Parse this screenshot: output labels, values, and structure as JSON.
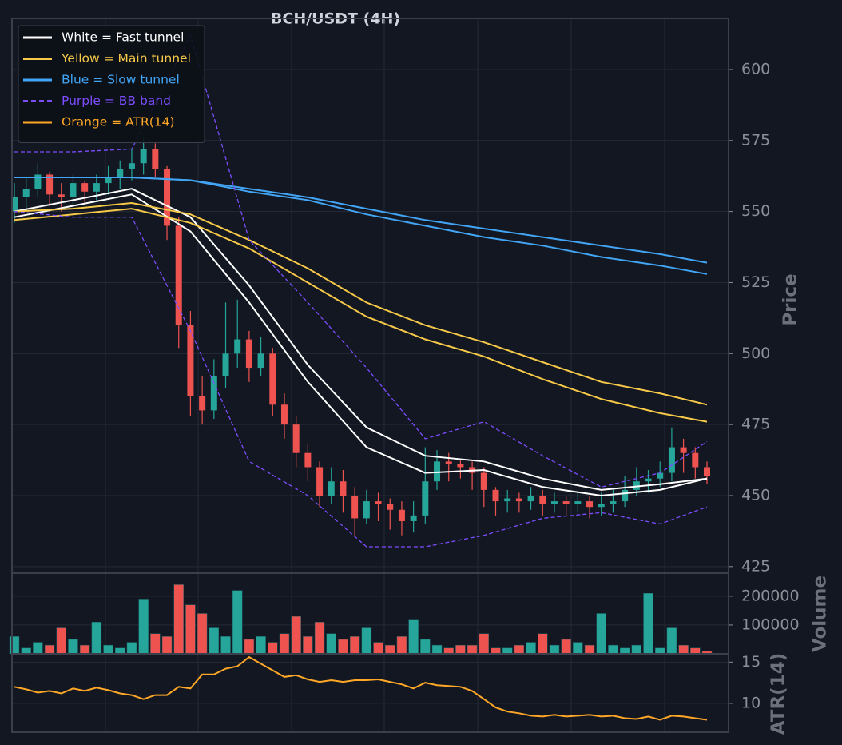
{
  "chart_data": [
    {
      "type": "candlestick",
      "title": "BCH/USDT (4H)",
      "ylabel": "Price",
      "legend": "upper left",
      "grid": true,
      "up_color": "#26a69a",
      "down_color": "#ef5350",
      "ylim": [
        422.7,
        618
      ],
      "yticks": [
        425,
        450,
        475,
        500,
        525,
        550,
        575,
        600
      ],
      "open": [
        550,
        555,
        558,
        563,
        556,
        555,
        560,
        557,
        560,
        562,
        565,
        567,
        572,
        565,
        545,
        510,
        485,
        480,
        492,
        500,
        505,
        495,
        500,
        482,
        475,
        465,
        460,
        450,
        455,
        450,
        442,
        448,
        447,
        445,
        441,
        443,
        455,
        462,
        461,
        460,
        458,
        452,
        448,
        449,
        448,
        450,
        447,
        448,
        447,
        448,
        446,
        447,
        448,
        452,
        455,
        456,
        458,
        467,
        465,
        460
      ],
      "high": [
        560,
        562,
        567,
        564,
        560,
        563,
        561,
        563,
        566,
        568,
        572,
        576,
        574,
        566,
        548,
        515,
        492,
        498,
        518,
        519,
        508,
        506,
        502,
        486,
        478,
        468,
        462,
        460,
        459,
        453,
        452,
        451,
        449,
        448,
        448,
        467,
        466,
        465,
        463,
        462,
        460,
        453,
        452,
        451,
        453,
        452,
        451,
        450,
        451,
        450,
        451,
        452,
        457,
        460,
        459,
        462,
        474,
        470,
        467,
        462
      ],
      "low": [
        546,
        551,
        555,
        552,
        550,
        552,
        553,
        554,
        556,
        558,
        561,
        563,
        562,
        540,
        502,
        478,
        475,
        477,
        488,
        495,
        490,
        492,
        478,
        470,
        460,
        455,
        446,
        447,
        444,
        436,
        440,
        441,
        438,
        436,
        437,
        440,
        452,
        455,
        456,
        452,
        446,
        443,
        444,
        444,
        445,
        443,
        444,
        443,
        444,
        442,
        443,
        444,
        446,
        450,
        451,
        453,
        455,
        458,
        456,
        454
      ],
      "close": [
        555,
        558,
        563,
        556,
        555,
        560,
        557,
        560,
        562,
        565,
        567,
        572,
        565,
        545,
        510,
        485,
        480,
        492,
        500,
        505,
        495,
        500,
        482,
        475,
        465,
        460,
        450,
        455,
        450,
        442,
        448,
        447,
        445,
        441,
        443,
        455,
        462,
        461,
        460,
        458,
        452,
        448,
        449,
        448,
        450,
        447,
        448,
        447,
        448,
        446,
        447,
        448,
        452,
        455,
        456,
        458,
        467,
        465,
        460,
        457
      ],
      "series": [
        {
          "name": "White = Fast tunnel",
          "color": "#ffffff",
          "x": [
            0,
            5,
            10,
            15,
            20,
            25,
            30,
            35,
            40,
            45,
            50,
            55,
            59
          ],
          "values": [
            550,
            554,
            558,
            548,
            524,
            496,
            474,
            464,
            462,
            456,
            452,
            454,
            456
          ]
        },
        {
          "color": "#ffffff",
          "x": [
            0,
            5,
            10,
            15,
            20,
            25,
            30,
            35,
            40,
            45,
            50,
            55,
            59
          ],
          "values": [
            548,
            552,
            556,
            543,
            518,
            490,
            467,
            458,
            459,
            453,
            450,
            452,
            456
          ]
        },
        {
          "name": "Yellow = Main tunnel",
          "color": "#f7c948",
          "x": [
            0,
            5,
            10,
            15,
            20,
            25,
            30,
            35,
            40,
            45,
            50,
            55,
            59
          ],
          "values": [
            550,
            551,
            553,
            549,
            540,
            530,
            518,
            510,
            504,
            497,
            490,
            486,
            482
          ]
        },
        {
          "color": "#f7c948",
          "x": [
            0,
            5,
            10,
            15,
            20,
            25,
            30,
            35,
            40,
            45,
            50,
            55,
            59
          ],
          "values": [
            547,
            549,
            551,
            546,
            537,
            525,
            513,
            505,
            499,
            491,
            484,
            479,
            476
          ]
        },
        {
          "name": "Blue = Slow tunnel",
          "color": "#42a5f5",
          "x": [
            0,
            5,
            10,
            15,
            20,
            25,
            30,
            35,
            40,
            45,
            50,
            55,
            59
          ],
          "values": [
            562,
            562,
            562,
            561,
            558,
            555,
            551,
            547,
            544,
            541,
            538,
            535,
            532
          ]
        },
        {
          "color": "#42a5f5",
          "x": [
            0,
            5,
            10,
            15,
            20,
            25,
            30,
            35,
            40,
            45,
            50,
            55,
            59
          ],
          "values": [
            562,
            562,
            562,
            561,
            557,
            554,
            549,
            545,
            541,
            538,
            534,
            531,
            528
          ]
        },
        {
          "name": "Purple = BB band",
          "color": "#7c4dff",
          "dash": true,
          "x": [
            0,
            5,
            10,
            15,
            20,
            25,
            30,
            35,
            40,
            45,
            50,
            55,
            59
          ],
          "values": [
            571,
            571,
            572,
            612,
            540,
            518,
            495,
            470,
            476,
            464,
            453,
            458,
            469
          ]
        },
        {
          "color": "#7c4dff",
          "dash": true,
          "x": [
            0,
            5,
            10,
            15,
            20,
            25,
            30,
            35,
            40,
            45,
            50,
            55,
            59
          ],
          "values": [
            550,
            548,
            548,
            508,
            462,
            450,
            432,
            432,
            436,
            442,
            444,
            440,
            446
          ]
        }
      ]
    },
    {
      "type": "bar",
      "ylabel": "Volume",
      "grid": true,
      "ylim": [
        0,
        280000
      ],
      "yticks": [
        100000,
        200000
      ],
      "values": [
        60000,
        20000,
        40000,
        30000,
        90000,
        50000,
        30000,
        110000,
        30000,
        20000,
        40000,
        190000,
        70000,
        60000,
        240000,
        170000,
        140000,
        90000,
        60000,
        220000,
        50000,
        60000,
        40000,
        70000,
        130000,
        60000,
        110000,
        70000,
        50000,
        60000,
        90000,
        40000,
        30000,
        60000,
        120000,
        50000,
        30000,
        20000,
        30000,
        30000,
        70000,
        20000,
        20000,
        30000,
        40000,
        70000,
        30000,
        50000,
        40000,
        30000,
        140000,
        30000,
        20000,
        30000,
        210000,
        20000,
        90000,
        30000,
        20000,
        10000
      ]
    },
    {
      "type": "line",
      "ylabel": "ATR(14)",
      "grid": true,
      "ylim": [
        6.5,
        16
      ],
      "yticks": [
        10,
        15
      ],
      "series": [
        {
          "name": "Orange = ATR(14)",
          "color": "#ffa726",
          "values": [
            12,
            11.7,
            11.3,
            11.5,
            11.2,
            11.8,
            11.5,
            11.9,
            11.6,
            11.2,
            11,
            10.5,
            11,
            11,
            12,
            11.8,
            13.5,
            13.5,
            14.2,
            14.5,
            15.6,
            14.8,
            14,
            13.2,
            13.4,
            12.9,
            12.6,
            12.8,
            12.6,
            12.8,
            12.8,
            12.9,
            12.6,
            12.3,
            11.8,
            12.5,
            12.2,
            12.1,
            12,
            11.5,
            10.5,
            9.5,
            9,
            8.8,
            8.5,
            8.4,
            8.6,
            8.4,
            8.5,
            8.6,
            8.4,
            8.5,
            8.2,
            8.1,
            8.4,
            8,
            8.5,
            8.4,
            8.2,
            8
          ]
        }
      ]
    }
  ]
}
